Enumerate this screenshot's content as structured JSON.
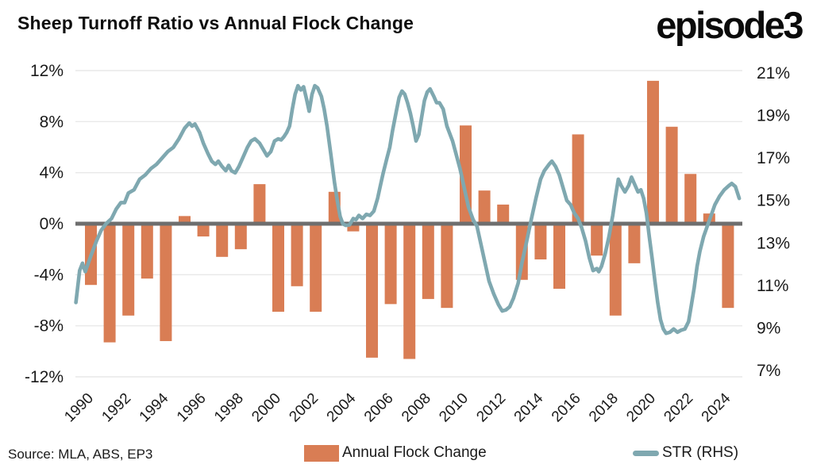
{
  "header": {
    "title": "Sheep Turnoff Ratio vs Annual Flock Change",
    "logo": "episode3"
  },
  "footer": {
    "source": "Source: MLA, ABS, EP3"
  },
  "legend": {
    "flock_label": "Annual Flock Change",
    "str_label": "STR (RHS)"
  },
  "colors": {
    "bar": "#D97D54",
    "line": "#7FA8B0",
    "zero_line": "#6E6E6E",
    "gridline": "#E9E9E9",
    "text": "#1A1A1A"
  },
  "chart_data": {
    "type": "bar+line combo, dual axis",
    "title": "Sheep Turnoff Ratio vs Annual Flock Change",
    "grid": "horizontal only",
    "left_axis": {
      "label": "Annual Flock Change",
      "ticks": [
        "12%",
        "8%",
        "4%",
        "0%",
        "-4%",
        "-8%",
        "-12%"
      ],
      "max": 12,
      "min": -12
    },
    "right_axis": {
      "label": "STR (RHS)",
      "ticks": [
        "21%",
        "19%",
        "17%",
        "15%",
        "13%",
        "11%",
        "9%",
        "7%"
      ],
      "max": 21,
      "min": 7
    },
    "x_axis": {
      "tick_years": [
        1990,
        1992,
        1994,
        1996,
        1998,
        2000,
        2002,
        2004,
        2006,
        2008,
        2010,
        2012,
        2014,
        2016,
        2018,
        2020,
        2022,
        2024
      ]
    },
    "series": [
      {
        "name": "Annual Flock Change",
        "type": "bar",
        "axis": "left",
        "categories": [
          1990,
          1991,
          1992,
          1993,
          1994,
          1995,
          1996,
          1997,
          1998,
          1999,
          2000,
          2001,
          2002,
          2003,
          2004,
          2005,
          2006,
          2007,
          2008,
          2009,
          2010,
          2011,
          2012,
          2013,
          2014,
          2015,
          2016,
          2017,
          2018,
          2019,
          2020,
          2021,
          2022,
          2023,
          2024
        ],
        "values": [
          -4.8,
          -9.3,
          -7.2,
          -4.3,
          -9.2,
          0.6,
          -1.0,
          -2.6,
          -2.0,
          3.1,
          -6.9,
          -4.9,
          -6.9,
          2.5,
          -0.6,
          -10.5,
          -6.3,
          -10.6,
          -5.9,
          -6.6,
          7.7,
          2.6,
          1.5,
          -4.4,
          -2.8,
          -5.1,
          7.0,
          -2.5,
          -7.2,
          -3.1,
          11.2,
          7.6,
          3.9,
          0.8,
          -6.6
        ]
      },
      {
        "name": "STR (RHS)",
        "type": "line",
        "axis": "right",
        "points": [
          [
            1989.2,
            10.2
          ],
          [
            1989.4,
            11.7
          ],
          [
            1989.55,
            12.05
          ],
          [
            1989.7,
            11.65
          ],
          [
            1990.0,
            12.4
          ],
          [
            1990.3,
            13.1
          ],
          [
            1990.55,
            13.6
          ],
          [
            1990.8,
            13.9
          ],
          [
            1991.1,
            14.15
          ],
          [
            1991.35,
            14.6
          ],
          [
            1991.6,
            14.9
          ],
          [
            1991.8,
            14.9
          ],
          [
            1992.0,
            15.35
          ],
          [
            1992.3,
            15.5
          ],
          [
            1992.6,
            16.0
          ],
          [
            1992.9,
            16.2
          ],
          [
            1993.2,
            16.5
          ],
          [
            1993.5,
            16.7
          ],
          [
            1993.8,
            17.0
          ],
          [
            1994.1,
            17.3
          ],
          [
            1994.4,
            17.5
          ],
          [
            1994.7,
            17.9
          ],
          [
            1995.0,
            18.4
          ],
          [
            1995.25,
            18.65
          ],
          [
            1995.4,
            18.5
          ],
          [
            1995.55,
            18.6
          ],
          [
            1995.8,
            18.2
          ],
          [
            1996.0,
            17.7
          ],
          [
            1996.25,
            17.2
          ],
          [
            1996.45,
            16.85
          ],
          [
            1996.65,
            16.7
          ],
          [
            1996.8,
            16.85
          ],
          [
            1997.0,
            16.6
          ],
          [
            1997.2,
            16.4
          ],
          [
            1997.35,
            16.65
          ],
          [
            1997.5,
            16.4
          ],
          [
            1997.7,
            16.3
          ],
          [
            1997.9,
            16.6
          ],
          [
            1998.1,
            17.0
          ],
          [
            1998.35,
            17.5
          ],
          [
            1998.55,
            17.8
          ],
          [
            1998.75,
            17.9
          ],
          [
            1999.0,
            17.7
          ],
          [
            1999.2,
            17.4
          ],
          [
            1999.4,
            17.1
          ],
          [
            1999.6,
            17.3
          ],
          [
            1999.8,
            17.8
          ],
          [
            2000.0,
            17.9
          ],
          [
            2000.15,
            17.85
          ],
          [
            2000.3,
            18.0
          ],
          [
            2000.45,
            18.2
          ],
          [
            2000.6,
            18.5
          ],
          [
            2000.75,
            19.3
          ],
          [
            2000.9,
            20.0
          ],
          [
            2001.05,
            20.4
          ],
          [
            2001.2,
            20.2
          ],
          [
            2001.35,
            20.35
          ],
          [
            2001.5,
            19.8
          ],
          [
            2001.65,
            19.2
          ],
          [
            2001.8,
            20.0
          ],
          [
            2001.95,
            20.4
          ],
          [
            2002.1,
            20.3
          ],
          [
            2002.3,
            19.9
          ],
          [
            2002.45,
            19.3
          ],
          [
            2002.6,
            18.5
          ],
          [
            2002.8,
            17.2
          ],
          [
            2003.0,
            15.85
          ],
          [
            2003.15,
            15.0
          ],
          [
            2003.3,
            14.25
          ],
          [
            2003.45,
            13.9
          ],
          [
            2003.6,
            13.83
          ],
          [
            2003.8,
            13.85
          ],
          [
            2004.0,
            14.15
          ],
          [
            2004.15,
            14.1
          ],
          [
            2004.3,
            14.3
          ],
          [
            2004.5,
            14.15
          ],
          [
            2004.7,
            14.35
          ],
          [
            2004.9,
            14.3
          ],
          [
            2005.1,
            14.5
          ],
          [
            2005.3,
            15.1
          ],
          [
            2005.45,
            15.7
          ],
          [
            2005.6,
            16.3
          ],
          [
            2005.8,
            17.0
          ],
          [
            2005.95,
            17.5
          ],
          [
            2006.1,
            18.3
          ],
          [
            2006.3,
            19.2
          ],
          [
            2006.45,
            19.85
          ],
          [
            2006.6,
            20.15
          ],
          [
            2006.75,
            20.0
          ],
          [
            2006.9,
            19.6
          ],
          [
            2007.05,
            19.1
          ],
          [
            2007.2,
            18.5
          ],
          [
            2007.35,
            17.8
          ],
          [
            2007.5,
            18.1
          ],
          [
            2007.65,
            18.9
          ],
          [
            2007.8,
            19.7
          ],
          [
            2007.95,
            20.1
          ],
          [
            2008.1,
            20.25
          ],
          [
            2008.3,
            19.9
          ],
          [
            2008.45,
            19.6
          ],
          [
            2008.6,
            19.6
          ],
          [
            2008.8,
            19.3
          ],
          [
            2009.0,
            18.5
          ],
          [
            2009.3,
            17.8
          ],
          [
            2009.5,
            17.15
          ],
          [
            2009.7,
            16.5
          ],
          [
            2009.9,
            15.7
          ],
          [
            2010.15,
            14.7
          ],
          [
            2010.4,
            14.1
          ],
          [
            2010.6,
            13.8
          ],
          [
            2010.8,
            13.0
          ],
          [
            2011.0,
            12.2
          ],
          [
            2011.25,
            11.2
          ],
          [
            2011.5,
            10.6
          ],
          [
            2011.75,
            10.1
          ],
          [
            2011.95,
            9.8
          ],
          [
            2012.15,
            9.85
          ],
          [
            2012.35,
            10.0
          ],
          [
            2012.55,
            10.4
          ],
          [
            2012.8,
            11.1
          ],
          [
            2013.0,
            12.05
          ],
          [
            2013.25,
            13.05
          ],
          [
            2013.5,
            14.1
          ],
          [
            2013.75,
            15.1
          ],
          [
            2014.0,
            16.0
          ],
          [
            2014.2,
            16.4
          ],
          [
            2014.45,
            16.7
          ],
          [
            2014.6,
            16.85
          ],
          [
            2014.8,
            16.6
          ],
          [
            2015.0,
            16.2
          ],
          [
            2015.2,
            15.6
          ],
          [
            2015.4,
            15.0
          ],
          [
            2015.6,
            14.8
          ],
          [
            2015.8,
            14.4
          ],
          [
            2016.0,
            14.15
          ],
          [
            2016.2,
            13.7
          ],
          [
            2016.4,
            13.1
          ],
          [
            2016.6,
            12.3
          ],
          [
            2016.8,
            11.7
          ],
          [
            2017.0,
            11.8
          ],
          [
            2017.1,
            11.65
          ],
          [
            2017.25,
            11.9
          ],
          [
            2017.45,
            12.5
          ],
          [
            2017.65,
            13.3
          ],
          [
            2017.85,
            14.3
          ],
          [
            2018.0,
            15.2
          ],
          [
            2018.15,
            16.0
          ],
          [
            2018.3,
            15.7
          ],
          [
            2018.5,
            15.4
          ],
          [
            2018.7,
            15.7
          ],
          [
            2018.85,
            16.1
          ],
          [
            2019.0,
            15.8
          ],
          [
            2019.2,
            15.4
          ],
          [
            2019.35,
            15.5
          ],
          [
            2019.5,
            15.1
          ],
          [
            2019.65,
            14.4
          ],
          [
            2019.8,
            13.3
          ],
          [
            2019.95,
            12.3
          ],
          [
            2020.1,
            11.2
          ],
          [
            2020.25,
            10.2
          ],
          [
            2020.4,
            9.4
          ],
          [
            2020.55,
            8.95
          ],
          [
            2020.7,
            8.75
          ],
          [
            2020.9,
            8.8
          ],
          [
            2021.1,
            8.95
          ],
          [
            2021.3,
            8.8
          ],
          [
            2021.5,
            8.9
          ],
          [
            2021.7,
            8.95
          ],
          [
            2021.9,
            9.3
          ],
          [
            2022.05,
            10.1
          ],
          [
            2022.2,
            10.9
          ],
          [
            2022.35,
            11.9
          ],
          [
            2022.5,
            12.6
          ],
          [
            2022.7,
            13.3
          ],
          [
            2022.9,
            13.8
          ],
          [
            2023.1,
            14.3
          ],
          [
            2023.3,
            14.8
          ],
          [
            2023.55,
            15.2
          ],
          [
            2023.8,
            15.5
          ],
          [
            2024.05,
            15.7
          ],
          [
            2024.2,
            15.8
          ],
          [
            2024.4,
            15.65
          ],
          [
            2024.6,
            15.1
          ]
        ]
      }
    ]
  }
}
